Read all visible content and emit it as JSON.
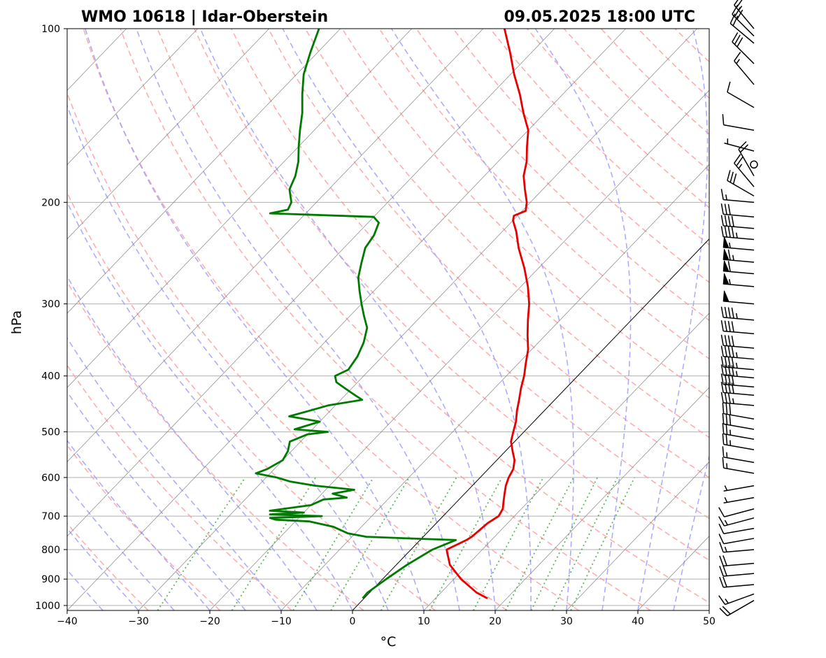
{
  "header": {
    "station": "WMO 10618 | Idar-Oberstein",
    "datetime": "09.05.2025 18:00 UTC"
  },
  "chart_data": {
    "type": "line",
    "chart_kind": "Skew-T log-P diagram",
    "title_left": "WMO 10618 | Idar-Oberstein",
    "title_right": "09.05.2025 18:00 UTC",
    "xlabel": "°C",
    "ylabel": "hPa",
    "xlim": [
      -40,
      50
    ],
    "ylim": [
      1020,
      100
    ],
    "y_scale": "log",
    "x_ticks": [
      "−40",
      "−30",
      "−20",
      "−10",
      "0",
      "10",
      "20",
      "30",
      "40",
      "50"
    ],
    "y_ticks": [
      "100",
      "200",
      "300",
      "400",
      "500",
      "600",
      "700",
      "800",
      "900",
      "1000"
    ],
    "grid": true,
    "colors": {
      "temperature": "#e60000",
      "dewpoint": "#007a00",
      "dry_adiabats": "#ff9999",
      "moist_adiabats": "#9999ff",
      "mixing_ratio": "#44aa44",
      "isotherms": "#808080",
      "zero_isotherm": "#000000"
    },
    "series": [
      {
        "name": "Temperature",
        "points": [
          [
            972,
            17.3
          ],
          [
            950,
            15.0
          ],
          [
            900,
            11.0
          ],
          [
            850,
            7.5
          ],
          [
            800,
            5.0
          ],
          [
            770,
            6.5
          ],
          [
            760,
            6.8
          ],
          [
            740,
            7.0
          ],
          [
            720,
            7.2
          ],
          [
            700,
            7.8
          ],
          [
            680,
            7.4
          ],
          [
            660,
            6.5
          ],
          [
            640,
            5.6
          ],
          [
            620,
            4.7
          ],
          [
            600,
            4.0
          ],
          [
            580,
            3.5
          ],
          [
            560,
            2.5
          ],
          [
            540,
            1.0
          ],
          [
            520,
            -0.5
          ],
          [
            500,
            -1.5
          ],
          [
            480,
            -2.5
          ],
          [
            460,
            -3.8
          ],
          [
            440,
            -5.0
          ],
          [
            420,
            -6.3
          ],
          [
            400,
            -7.5
          ],
          [
            380,
            -9.0
          ],
          [
            360,
            -10.5
          ],
          [
            340,
            -12.5
          ],
          [
            320,
            -14.5
          ],
          [
            300,
            -16.5
          ],
          [
            280,
            -19.0
          ],
          [
            260,
            -22.0
          ],
          [
            240,
            -25.5
          ],
          [
            225,
            -28.0
          ],
          [
            215,
            -30.0
          ],
          [
            211,
            -30.5
          ],
          [
            207,
            -29.5
          ],
          [
            200,
            -30.5
          ],
          [
            190,
            -32.5
          ],
          [
            180,
            -34.5
          ],
          [
            170,
            -36.0
          ],
          [
            160,
            -38.0
          ],
          [
            150,
            -40.0
          ],
          [
            140,
            -43.0
          ],
          [
            130,
            -46.0
          ],
          [
            120,
            -49.5
          ],
          [
            110,
            -53.0
          ],
          [
            100,
            -57.0
          ]
        ]
      },
      {
        "name": "Dewpoint",
        "points": [
          [
            972,
            -0.2
          ],
          [
            950,
            -0.3
          ],
          [
            900,
            0.5
          ],
          [
            850,
            1.5
          ],
          [
            800,
            3.0
          ],
          [
            770,
            5.0
          ],
          [
            765,
            -2.0
          ],
          [
            760,
            -8.0
          ],
          [
            750,
            -11.0
          ],
          [
            730,
            -14.0
          ],
          [
            715,
            -18.0
          ],
          [
            710,
            -23.0
          ],
          [
            705,
            -24.0
          ],
          [
            700,
            -17.0
          ],
          [
            695,
            -24.5
          ],
          [
            690,
            -20.0
          ],
          [
            685,
            -25.0
          ],
          [
            670,
            -20.0
          ],
          [
            655,
            -19.0
          ],
          [
            650,
            -16.0
          ],
          [
            640,
            -18.5
          ],
          [
            630,
            -16.0
          ],
          [
            620,
            -22.0
          ],
          [
            610,
            -26.0
          ],
          [
            600,
            -28.5
          ],
          [
            590,
            -32.0
          ],
          [
            580,
            -31.0
          ],
          [
            560,
            -30.0
          ],
          [
            540,
            -30.5
          ],
          [
            520,
            -31.5
          ],
          [
            505,
            -30.0
          ],
          [
            500,
            -27.5
          ],
          [
            495,
            -32.5
          ],
          [
            480,
            -30.0
          ],
          [
            470,
            -35.0
          ],
          [
            460,
            -33.0
          ],
          [
            450,
            -31.0
          ],
          [
            440,
            -27.0
          ],
          [
            430,
            -29.0
          ],
          [
            420,
            -31.0
          ],
          [
            410,
            -33.0
          ],
          [
            400,
            -34.0
          ],
          [
            390,
            -33.0
          ],
          [
            370,
            -33.5
          ],
          [
            350,
            -34.5
          ],
          [
            330,
            -36.0
          ],
          [
            315,
            -38.0
          ],
          [
            300,
            -40.0
          ],
          [
            285,
            -42.0
          ],
          [
            270,
            -44.0
          ],
          [
            255,
            -45.5
          ],
          [
            240,
            -47.0
          ],
          [
            228,
            -47.5
          ],
          [
            217,
            -48.5
          ],
          [
            212,
            -50.0
          ],
          [
            209,
            -65.0
          ],
          [
            206,
            -63.0
          ],
          [
            200,
            -63.5
          ],
          [
            190,
            -65.5
          ],
          [
            180,
            -66.5
          ],
          [
            170,
            -68.0
          ],
          [
            160,
            -70.0
          ],
          [
            150,
            -72.0
          ],
          [
            140,
            -74.0
          ],
          [
            130,
            -76.5
          ],
          [
            120,
            -79.0
          ],
          [
            110,
            -81.0
          ],
          [
            100,
            -83.0
          ]
        ]
      }
    ],
    "wind_barbs": [
      {
        "p": 100,
        "dir": 320,
        "kt": 25
      },
      {
        "p": 103,
        "dir": 315,
        "kt": 30
      },
      {
        "p": 106,
        "dir": 310,
        "kt": 20
      },
      {
        "p": 115,
        "dir": 315,
        "kt": 30
      },
      {
        "p": 125,
        "dir": 320,
        "kt": 15
      },
      {
        "p": 137,
        "dir": 300,
        "kt": 10
      },
      {
        "p": 150,
        "dir": 280,
        "kt": 10
      },
      {
        "p": 163,
        "dir": 285,
        "kt": 5
      },
      {
        "p": 172,
        "dir": 0,
        "kt": 0
      },
      {
        "p": 180,
        "dir": 330,
        "kt": 20
      },
      {
        "p": 188,
        "dir": 320,
        "kt": 25
      },
      {
        "p": 195,
        "dir": 300,
        "kt": 30
      },
      {
        "p": 200,
        "dir": 275,
        "kt": 15
      },
      {
        "p": 212,
        "dir": 275,
        "kt": 30
      },
      {
        "p": 222,
        "dir": 275,
        "kt": 40
      },
      {
        "p": 232,
        "dir": 275,
        "kt": 45
      },
      {
        "p": 242,
        "dir": 275,
        "kt": 55
      },
      {
        "p": 254,
        "dir": 275,
        "kt": 65
      },
      {
        "p": 266,
        "dir": 275,
        "kt": 60
      },
      {
        "p": 280,
        "dir": 275,
        "kt": 55
      },
      {
        "p": 300,
        "dir": 275,
        "kt": 50
      },
      {
        "p": 320,
        "dir": 275,
        "kt": 45
      },
      {
        "p": 338,
        "dir": 275,
        "kt": 40
      },
      {
        "p": 358,
        "dir": 275,
        "kt": 40
      },
      {
        "p": 374,
        "dir": 275,
        "kt": 45
      },
      {
        "p": 390,
        "dir": 275,
        "kt": 45
      },
      {
        "p": 403,
        "dir": 275,
        "kt": 45
      },
      {
        "p": 418,
        "dir": 275,
        "kt": 40
      },
      {
        "p": 432,
        "dir": 275,
        "kt": 40
      },
      {
        "p": 450,
        "dir": 275,
        "kt": 35
      },
      {
        "p": 475,
        "dir": 280,
        "kt": 30
      },
      {
        "p": 495,
        "dir": 280,
        "kt": 30
      },
      {
        "p": 515,
        "dir": 280,
        "kt": 25
      },
      {
        "p": 537,
        "dir": 280,
        "kt": 25
      },
      {
        "p": 565,
        "dir": 280,
        "kt": 15
      },
      {
        "p": 590,
        "dir": 280,
        "kt": 15
      },
      {
        "p": 620,
        "dir": 260,
        "kt": 5
      },
      {
        "p": 650,
        "dir": 260,
        "kt": 5
      },
      {
        "p": 680,
        "dir": 255,
        "kt": 10
      },
      {
        "p": 705,
        "dir": 255,
        "kt": 15
      },
      {
        "p": 735,
        "dir": 260,
        "kt": 10
      },
      {
        "p": 765,
        "dir": 260,
        "kt": 10
      },
      {
        "p": 800,
        "dir": 265,
        "kt": 15
      },
      {
        "p": 845,
        "dir": 265,
        "kt": 20
      },
      {
        "p": 880,
        "dir": 265,
        "kt": 20
      },
      {
        "p": 920,
        "dir": 265,
        "kt": 20
      },
      {
        "p": 955,
        "dir": 250,
        "kt": 15
      },
      {
        "p": 980,
        "dir": 240,
        "kt": 20
      }
    ]
  }
}
